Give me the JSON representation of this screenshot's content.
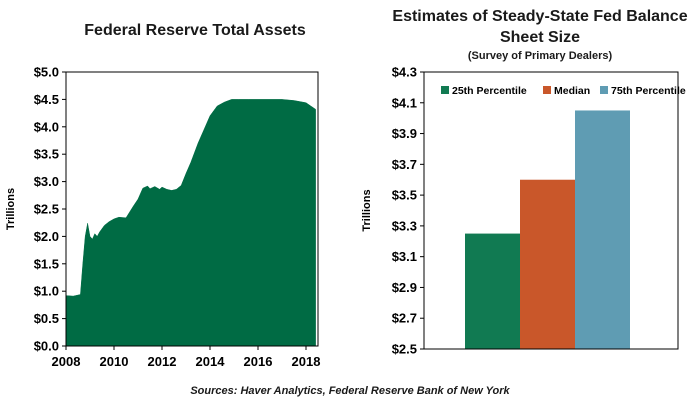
{
  "source": "Sources: Haver Analytics, Federal Reserve Bank of New York",
  "colors": {
    "area": "#006b44",
    "p25": "#117a52",
    "median": "#c9572a",
    "p75": "#5f9cb3",
    "axis": "#000000"
  },
  "chart_data": [
    {
      "type": "area",
      "title": "Federal Reserve Total Assets",
      "ylabel": "Trillions",
      "xlabel": "",
      "ylim": [
        0,
        5
      ],
      "xlim": [
        2008.0,
        2018.5
      ],
      "grid": false,
      "legend": "none",
      "y_ticks": [
        "$0.0",
        "$0.5",
        "$1.0",
        "$1.5",
        "$2.0",
        "$2.5",
        "$3.0",
        "$3.5",
        "$4.0",
        "$4.5",
        "$5.0"
      ],
      "y_tick_values": [
        0,
        0.5,
        1,
        1.5,
        2,
        2.5,
        3,
        3.5,
        4,
        4.5,
        5
      ],
      "x_ticks": [
        "2008",
        "2010",
        "2012",
        "2014",
        "2016",
        "2018"
      ],
      "x_tick_values": [
        2008,
        2010,
        2012,
        2014,
        2016,
        2018
      ],
      "x": [
        2008.0,
        2008.3,
        2008.6,
        2008.7,
        2008.8,
        2008.9,
        2009.0,
        2009.1,
        2009.2,
        2009.3,
        2009.4,
        2009.6,
        2009.8,
        2010.0,
        2010.2,
        2010.5,
        2010.8,
        2011.0,
        2011.2,
        2011.4,
        2011.5,
        2011.7,
        2011.9,
        2012.0,
        2012.2,
        2012.4,
        2012.6,
        2012.8,
        2013.0,
        2013.2,
        2013.5,
        2013.8,
        2014.0,
        2014.3,
        2014.6,
        2014.9,
        2015.2,
        2015.6,
        2016.0,
        2016.5,
        2017.0,
        2017.5,
        2018.0,
        2018.2,
        2018.4
      ],
      "y": [
        0.92,
        0.91,
        0.94,
        1.5,
        2.0,
        2.24,
        2.0,
        1.95,
        2.05,
        2.0,
        2.08,
        2.2,
        2.27,
        2.32,
        2.35,
        2.34,
        2.55,
        2.68,
        2.88,
        2.92,
        2.87,
        2.91,
        2.86,
        2.9,
        2.86,
        2.84,
        2.86,
        2.93,
        3.15,
        3.35,
        3.7,
        4.0,
        4.2,
        4.38,
        4.45,
        4.5,
        4.5,
        4.5,
        4.5,
        4.5,
        4.5,
        4.48,
        4.44,
        4.38,
        4.32
      ]
    },
    {
      "type": "bar",
      "title": "Estimates of Steady-State Fed Balance Sheet Size",
      "subtitle": "(Survey of Primary Dealers)",
      "ylabel": "Trillions",
      "xlabel": "",
      "ylim": [
        2.5,
        4.3
      ],
      "grid": false,
      "legend": "top",
      "y_ticks": [
        "$2.5",
        "$2.7",
        "$2.9",
        "$3.1",
        "$3.3",
        "$3.5",
        "$3.7",
        "$3.9",
        "$4.1",
        "$4.3"
      ],
      "y_tick_values": [
        2.5,
        2.7,
        2.9,
        3.1,
        3.3,
        3.5,
        3.7,
        3.9,
        4.1,
        4.3
      ],
      "series": [
        {
          "name": "25th Percentile",
          "value": 3.25
        },
        {
          "name": "Median",
          "value": 3.6
        },
        {
          "name": "75th Percentile",
          "value": 4.05
        }
      ]
    }
  ]
}
